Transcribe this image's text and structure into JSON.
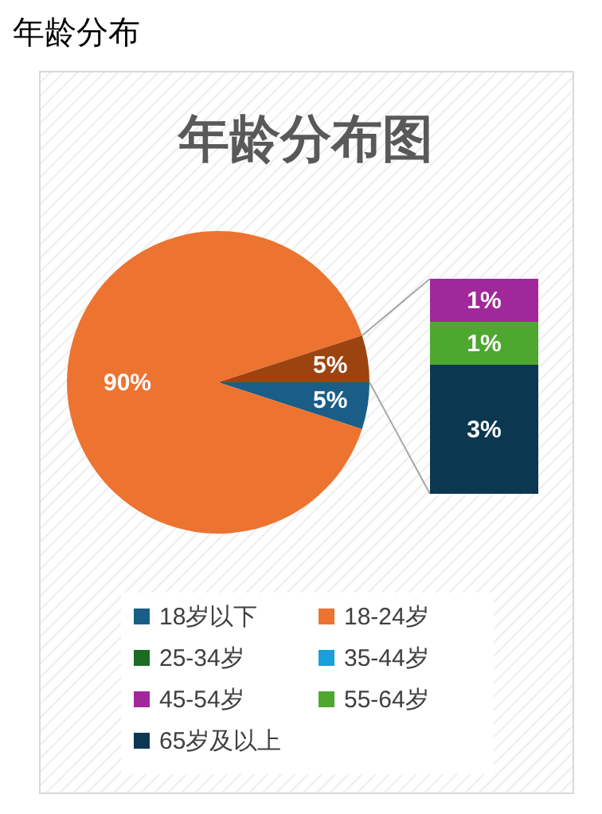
{
  "chart_data": [
    {
      "type": "pie",
      "subtitle": "年龄分布",
      "title": "年龄分布图",
      "categories": [
        "18岁以下",
        "18-24岁",
        null
      ],
      "values": [
        5,
        90,
        5
      ],
      "colors": [
        "#1a5e88",
        "#ed7331",
        "#9c4410"
      ],
      "value_labels": [
        "5%",
        "90%",
        "5%"
      ],
      "legend": "bottom"
    },
    {
      "type": "bar",
      "stacked": true,
      "categories": [
        null
      ],
      "series": [
        {
          "name": "65岁及以上",
          "color": "#0c3750",
          "values": [
            3
          ],
          "value_labels": [
            "3%"
          ]
        },
        {
          "name": "55-64岁",
          "color": "#4ea72e",
          "values": [
            1
          ],
          "value_labels": [
            "1%"
          ]
        },
        {
          "name": "45-54岁",
          "color": "#a0289a",
          "values": [
            1
          ],
          "value_labels": [
            "1%"
          ]
        },
        {
          "name": "35-44岁",
          "color": "#17a0dc",
          "values": [
            0
          ],
          "value_labels": [
            null
          ]
        },
        {
          "name": "25-34岁",
          "color": "#1c6b22",
          "values": [
            0
          ],
          "value_labels": [
            null
          ]
        }
      ],
      "legend": "bottom"
    }
  ]
}
